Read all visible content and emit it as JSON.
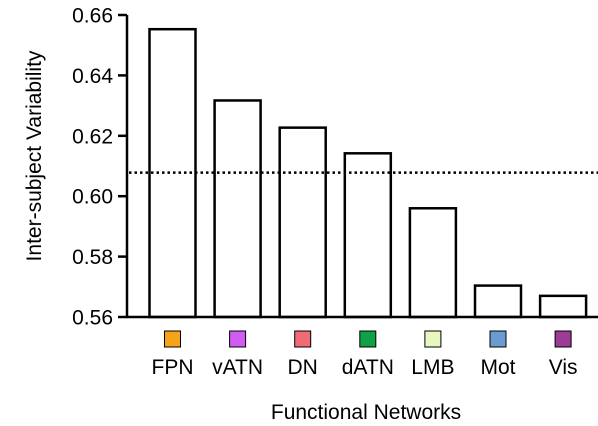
{
  "chart_data": {
    "type": "bar",
    "title": "",
    "xlabel": "Functional Networks",
    "ylabel": "Inter-subject Variability",
    "categories": [
      "FPN",
      "vATN",
      "DN",
      "dATN",
      "LMB",
      "Mot",
      "Vis"
    ],
    "values": [
      0.6553,
      0.6317,
      0.6227,
      0.6142,
      0.596,
      0.5704,
      0.567
    ],
    "category_colors": [
      "#f7a21b",
      "#d05cf2",
      "#f06a78",
      "#10a045",
      "#e8f6c0",
      "#6a9bd1",
      "#9c3c96"
    ],
    "bar_fill": "#ffffff",
    "bar_stroke": "#000000",
    "ylim": [
      0.56,
      0.66
    ],
    "yticks": [
      0.56,
      0.58,
      0.6,
      0.62,
      0.64,
      0.66
    ],
    "ytick_labels": [
      "0.56",
      "0.58",
      "0.60",
      "0.62",
      "0.64",
      "0.66"
    ],
    "reference_line": {
      "value": 0.6078,
      "style": "dotted"
    },
    "grid": false,
    "legend": "none"
  }
}
